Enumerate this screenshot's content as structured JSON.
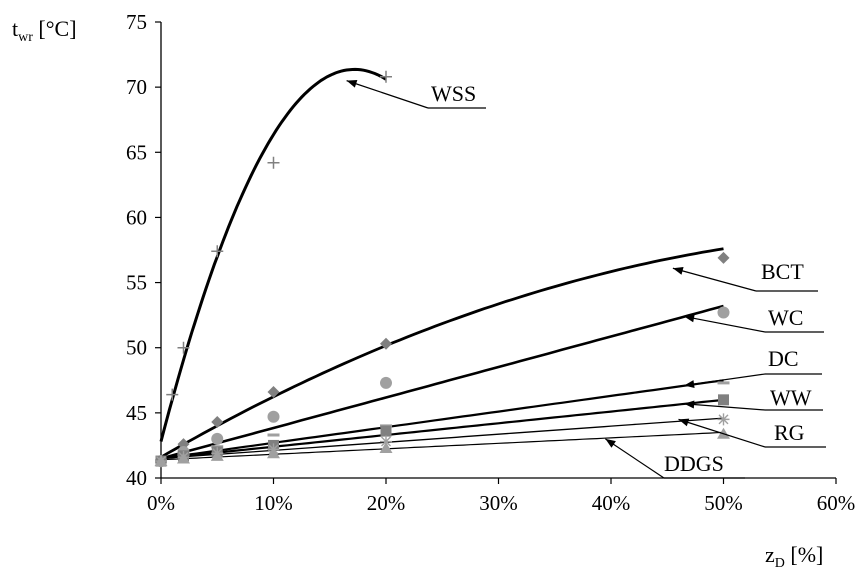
{
  "chart_data": {
    "type": "scatter",
    "ylabel": {
      "main": "t",
      "sub": "wr",
      "unit": " [°C]"
    },
    "xlabel": {
      "main": "z",
      "sub": "D",
      "unit": " [%]"
    },
    "xlim": [
      0,
      60
    ],
    "ylim": [
      40,
      75
    ],
    "x_ticks": [
      {
        "v": 0,
        "label": "0%"
      },
      {
        "v": 10,
        "label": "10%"
      },
      {
        "v": 20,
        "label": "20%"
      },
      {
        "v": 30,
        "label": "30%"
      },
      {
        "v": 40,
        "label": "40%"
      },
      {
        "v": 50,
        "label": "50%"
      },
      {
        "v": 60,
        "label": "60%"
      }
    ],
    "y_ticks": [
      {
        "v": 40,
        "label": "40"
      },
      {
        "v": 45,
        "label": "45"
      },
      {
        "v": 50,
        "label": "50"
      },
      {
        "v": 55,
        "label": "55"
      },
      {
        "v": 60,
        "label": "60"
      },
      {
        "v": 65,
        "label": "65"
      },
      {
        "v": 70,
        "label": "70"
      },
      {
        "v": 75,
        "label": "75"
      }
    ],
    "grid": false,
    "series": [
      {
        "name": "WSS",
        "marker": "plus",
        "color": "#808080",
        "points": [
          [
            0,
            41.3
          ],
          [
            1,
            46.4
          ],
          [
            2,
            50.0
          ],
          [
            5,
            57.4
          ],
          [
            10,
            64.2
          ],
          [
            20,
            70.8
          ]
        ],
        "fit": {
          "kind": "poly2",
          "x_range": [
            0,
            20
          ],
          "coef": [
            42.8,
            3.322,
            -0.0966
          ]
        },
        "fit_width": 3,
        "annotation": {
          "label": "WSS",
          "point": [
            16.5,
            70.5
          ]
        }
      },
      {
        "name": "BCT",
        "marker": "diamond",
        "color": "#808080",
        "points": [
          [
            0,
            41.3
          ],
          [
            2,
            42.6
          ],
          [
            5,
            44.3
          ],
          [
            10,
            46.6
          ],
          [
            20,
            50.3
          ],
          [
            50,
            56.9
          ]
        ],
        "fit": {
          "kind": "poly2",
          "x_range": [
            0,
            50
          ],
          "coef": [
            41.6,
            0.5,
            -0.0036
          ]
        },
        "fit_width": 2.8,
        "annotation": {
          "label": "BCT",
          "point": [
            45.5,
            56.1
          ]
        }
      },
      {
        "name": "WC",
        "marker": "circle",
        "color": "#a0a0a0",
        "points": [
          [
            0,
            41.3
          ],
          [
            2,
            42.0
          ],
          [
            5,
            43.0
          ],
          [
            10,
            44.7
          ],
          [
            20,
            47.3
          ],
          [
            50,
            52.7
          ]
        ],
        "fit": {
          "kind": "linear",
          "x_range": [
            0,
            50
          ],
          "coef": [
            41.5,
            0.234
          ]
        },
        "fit_width": 2.6,
        "annotation": {
          "label": "WC",
          "point": [
            46.5,
            52.4
          ]
        }
      },
      {
        "name": "DC",
        "marker": "dash",
        "color": "#a0a0a0",
        "points": [
          [
            0,
            41.3
          ],
          [
            2,
            41.8
          ],
          [
            5,
            42.4
          ],
          [
            10,
            43.3
          ],
          [
            20,
            44.0
          ],
          [
            50,
            47.3
          ]
        ],
        "fit": {
          "kind": "linear",
          "x_range": [
            0,
            50
          ],
          "coef": [
            41.5,
            0.12
          ]
        },
        "fit_width": 2.2,
        "annotation": {
          "label": "DC",
          "point": [
            46.5,
            47.1
          ]
        }
      },
      {
        "name": "WW",
        "marker": "square",
        "color": "#808080",
        "points": [
          [
            0,
            41.3
          ],
          [
            2,
            41.7
          ],
          [
            5,
            42.0
          ],
          [
            10,
            42.5
          ],
          [
            20,
            43.6
          ],
          [
            50,
            46.0
          ]
        ],
        "fit": {
          "kind": "linear",
          "x_range": [
            0,
            50
          ],
          "coef": [
            41.5,
            0.09
          ]
        },
        "fit_width": 2.2,
        "annotation": {
          "label": "WW",
          "point": [
            46.5,
            45.7
          ]
        }
      },
      {
        "name": "RG",
        "marker": "star",
        "color": "#a0a0a0",
        "points": [
          [
            0,
            41.3
          ],
          [
            2,
            41.6
          ],
          [
            5,
            41.9
          ],
          [
            10,
            42.2
          ],
          [
            20,
            42.8
          ],
          [
            50,
            44.5
          ]
        ],
        "fit": {
          "kind": "linear",
          "x_range": [
            0,
            50
          ],
          "coef": [
            41.5,
            0.062
          ]
        },
        "fit_width": 1.3,
        "annotation": {
          "label": "RG",
          "point": [
            46,
            44.5
          ]
        }
      },
      {
        "name": "DDGS",
        "marker": "triangle",
        "color": "#a0a0a0",
        "points": [
          [
            0,
            41.3
          ],
          [
            2,
            41.5
          ],
          [
            5,
            41.7
          ],
          [
            10,
            41.9
          ],
          [
            20,
            42.3
          ],
          [
            50,
            43.4
          ]
        ],
        "fit": {
          "kind": "linear",
          "x_range": [
            0,
            50
          ],
          "coef": [
            41.4,
            0.042
          ]
        },
        "fit_width": 1.2,
        "annotation": {
          "label": "DDGS",
          "point": [
            39.5,
            43.0
          ]
        }
      }
    ]
  }
}
